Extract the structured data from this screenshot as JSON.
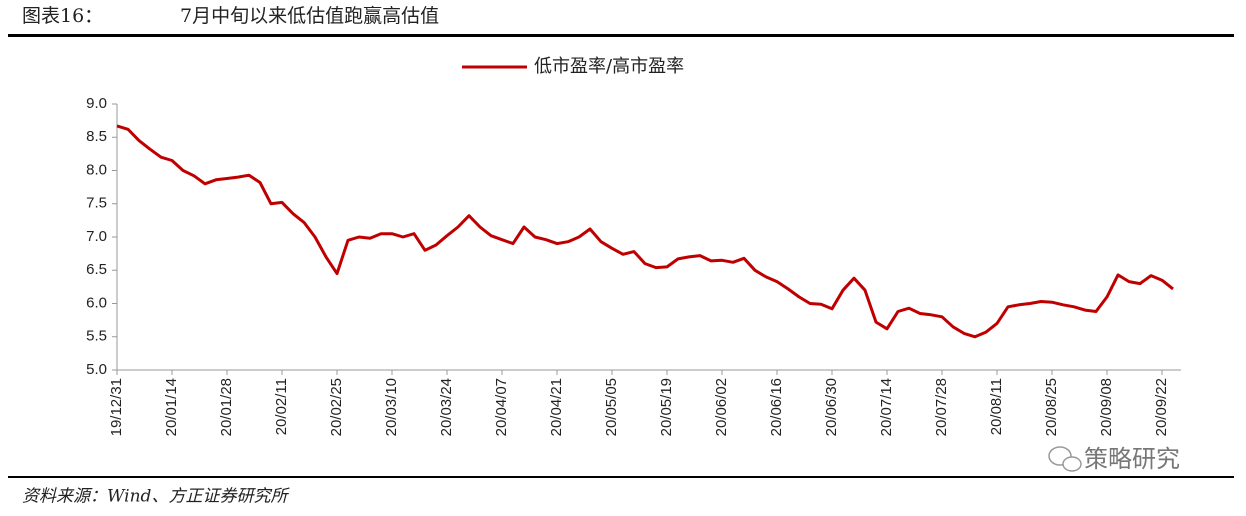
{
  "chart_data": {
    "type": "line",
    "figure_label": "图表16：",
    "title": "7月中旬以来低估值跑赢高估值",
    "source": "资料来源：Wind、方正证券研究所",
    "watermark": "策略研究",
    "categories": [
      "19/12/31",
      null,
      null,
      null,
      null,
      "20/01/14",
      null,
      null,
      null,
      null,
      "20/01/28",
      null,
      null,
      null,
      null,
      "20/02/11",
      null,
      null,
      null,
      null,
      "20/02/25",
      null,
      null,
      null,
      null,
      "20/03/10",
      null,
      null,
      null,
      null,
      "20/03/24",
      null,
      null,
      null,
      null,
      "20/04/07",
      null,
      null,
      null,
      null,
      "20/04/21",
      null,
      null,
      null,
      null,
      "20/05/05",
      null,
      null,
      null,
      null,
      "20/05/19",
      null,
      null,
      null,
      null,
      "20/06/02",
      null,
      null,
      null,
      null,
      "20/06/16",
      null,
      null,
      null,
      null,
      "20/06/30",
      null,
      null,
      null,
      null,
      "20/07/14",
      null,
      null,
      null,
      null,
      "20/07/28",
      null,
      null,
      null,
      null,
      "20/08/11",
      null,
      null,
      null,
      null,
      "20/08/25",
      null,
      null,
      null,
      null,
      "20/09/08",
      null,
      null,
      null,
      null,
      "20/09/22",
      null
    ],
    "series": [
      {
        "name": "低市盈率/高市盈率",
        "color": "#c00000",
        "values": [
          8.67,
          8.62,
          8.45,
          8.32,
          8.2,
          8.15,
          8.0,
          7.92,
          7.8,
          7.86,
          7.88,
          7.9,
          7.93,
          7.82,
          7.5,
          7.52,
          7.35,
          7.22,
          7.0,
          6.7,
          6.45,
          6.95,
          7.0,
          6.98,
          7.05,
          7.05,
          7.0,
          7.05,
          6.8,
          6.88,
          7.02,
          7.15,
          7.32,
          7.15,
          7.02,
          6.96,
          6.9,
          7.15,
          7.0,
          6.96,
          6.9,
          6.93,
          7.0,
          7.12,
          6.93,
          6.83,
          6.74,
          6.78,
          6.6,
          6.54,
          6.55,
          6.67,
          6.7,
          6.72,
          6.64,
          6.65,
          6.62,
          6.68,
          6.5,
          6.4,
          6.33,
          6.22,
          6.1,
          6.0,
          5.99,
          5.92,
          6.2,
          6.38,
          6.2,
          5.72,
          5.62,
          5.88,
          5.93,
          5.85,
          5.83,
          5.8,
          5.65,
          5.55,
          5.5,
          5.57,
          5.7,
          5.95,
          5.98,
          6.0,
          6.03,
          6.02,
          5.98,
          5.95,
          5.9,
          5.88,
          6.1,
          6.43,
          6.33,
          6.3,
          6.42,
          6.35,
          6.22
        ]
      }
    ],
    "ylim": [
      5,
      9
    ],
    "yticks": [
      {
        "value": 5,
        "label": "5.0"
      },
      {
        "value": 5.5,
        "label": "5.5"
      },
      {
        "value": 6,
        "label": "6.0"
      },
      {
        "value": 6.5,
        "label": "6.5"
      },
      {
        "value": 7,
        "label": "7.0"
      },
      {
        "value": 7.5,
        "label": "7.5"
      },
      {
        "value": 8,
        "label": "8.0"
      },
      {
        "value": 8.5,
        "label": "8.5"
      },
      {
        "value": 9,
        "label": "9.0"
      }
    ],
    "grid": false,
    "legend": "top"
  }
}
